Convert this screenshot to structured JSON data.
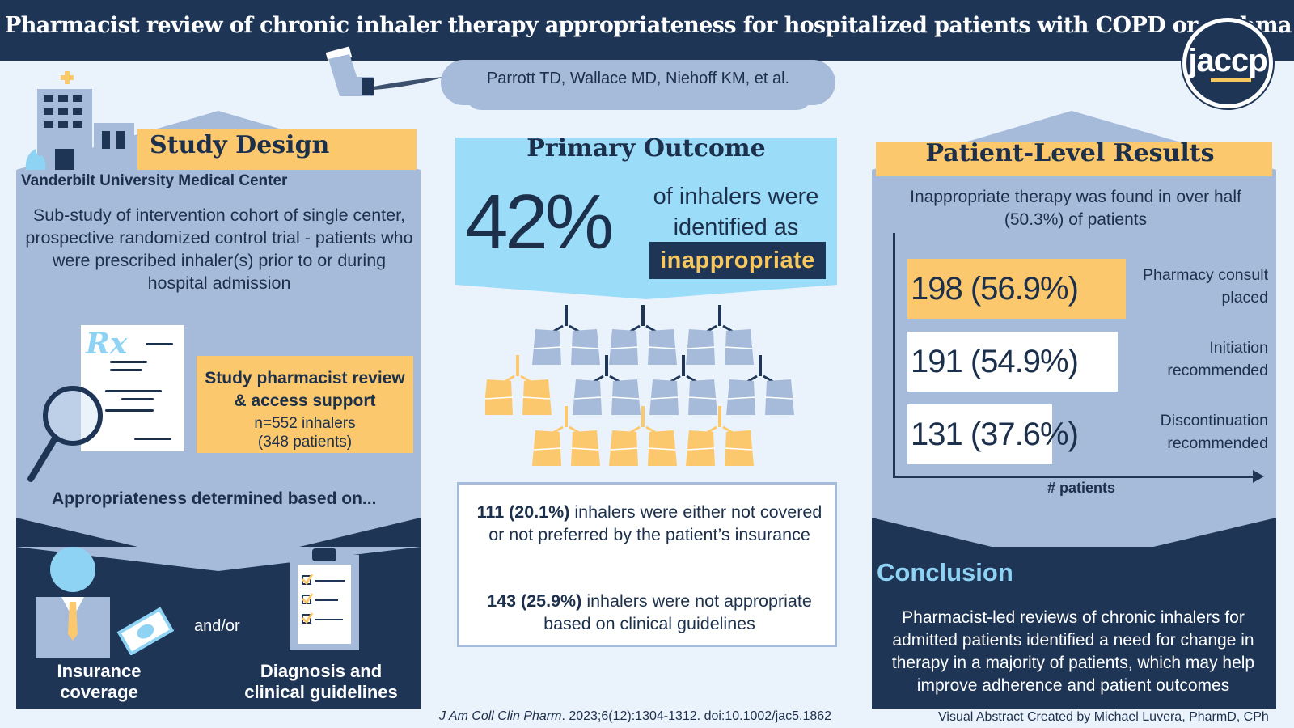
{
  "header": {
    "title": "Pharmacist review of chronic inhaler therapy appropriateness for hospitalized patients with COPD or asthma",
    "logo_text": "jaccp",
    "authors": "Parrott TD, Wallace MD, Niehoff KM, et al."
  },
  "study_design": {
    "title": "Study Design",
    "site": "Vanderbilt University Medical Center",
    "description": "Sub-study of intervention cohort of single center, prospective randomized control trial - patients who were prescribed inhaler(s) prior to or during hospital admission",
    "rx_symbol": "Rx",
    "review_title": "Study pharmacist review & access support",
    "review_n_line1": "n=552 inhalers",
    "review_n_line2": "(348 patients)",
    "appropriateness_heading": "Appropriateness determined based on...",
    "andor": "and/or",
    "insurance_label_1": "Insurance",
    "insurance_label_2": "coverage",
    "diagnosis_label_1": "Diagnosis and",
    "diagnosis_label_2": "clinical guidelines"
  },
  "primary_outcome": {
    "title": "Primary Outcome",
    "percent": "42%",
    "line1": "of inhalers were",
    "line2": "identified as",
    "highlight": "inappropriate",
    "stat1_bold": "111 (20.1%)",
    "stat1_rest": " inhalers were either not covered or not preferred by the patient’s insurance",
    "stat2_bold": "143 (25.9%)",
    "stat2_rest": " inhalers were not appropriate based on clinical guidelines",
    "lungs_highlighted_fraction": 0.42
  },
  "patient_results": {
    "title": "Patient-Level Results",
    "subtitle": "Inappropriate therapy was found in over half (50.3%) of patients",
    "x_label": "# patients",
    "bars": [
      {
        "value_text": "198 (56.9%)",
        "value": 198,
        "label_1": "Pharmacy consult",
        "label_2": "placed",
        "color": "#fbc86d"
      },
      {
        "value_text": "191 (54.9%)",
        "value": 191,
        "label_1": "Initiation",
        "label_2": "recommended",
        "color": "#ffffff"
      },
      {
        "value_text": "131 (37.6%)",
        "value": 131,
        "label_1": "Discontinuation",
        "label_2": "recommended",
        "color": "#ffffff"
      }
    ]
  },
  "conclusion": {
    "title": "Conclusion",
    "text": "Pharmacist-led reviews of chronic inhalers for admitted patients identified a need for change in therapy in a majority of patients, which may help improve adherence and patient outcomes"
  },
  "footer": {
    "citation_journal": "J Am Coll Clin Pharm",
    "citation_rest": ". 2023;6(12):1304-1312. doi:10.1002/jac5.1862",
    "credit": "Visual Abstract Created by Michael Luvera, PharmD, CPh"
  },
  "colors": {
    "navy": "#1e3556",
    "gold": "#fbc86d",
    "light_blue": "#a6bbda",
    "sky": "#8fd3f4"
  },
  "icons": [
    "hospital-icon",
    "inhaler-icon",
    "prescription-icon",
    "magnifier-icon",
    "person-icon",
    "money-icon",
    "clipboard-icon",
    "lungs-icon"
  ]
}
